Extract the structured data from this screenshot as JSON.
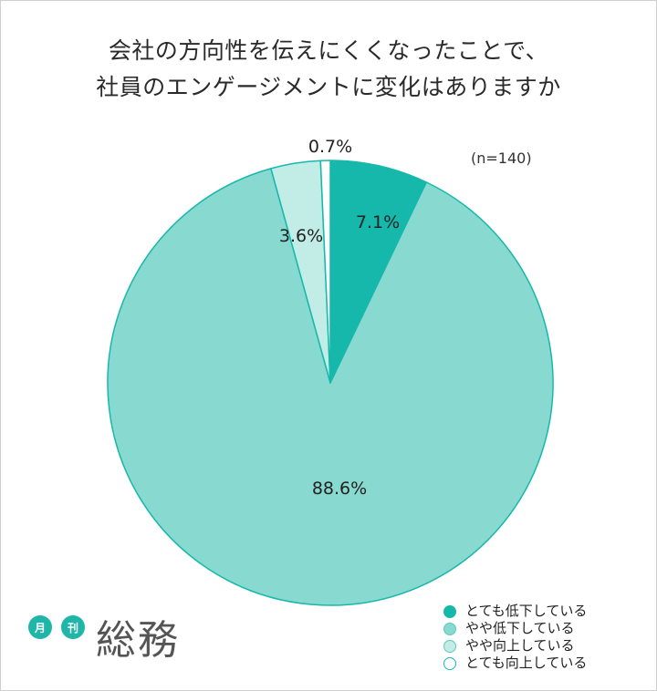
{
  "chart_data": {
    "type": "pie",
    "title_lines": [
      "会社の方向性を伝えにくくなったことで、",
      "社員のエンゲージメントに変化はありますか"
    ],
    "note": "(n=140)",
    "categories": [
      "とても低下している",
      "やや低下している",
      "やや向上している",
      "とても向上している"
    ],
    "values": [
      7.1,
      88.6,
      3.6,
      0.7
    ],
    "labels": [
      "7.1%",
      "88.6%",
      "3.6%",
      "0.7%"
    ],
    "colors": [
      "#17b8ac",
      "#88d9cf",
      "#c2ece6",
      "#ffffff"
    ],
    "legend_position": "bottom-right"
  },
  "logo": {
    "badge_1": "月",
    "badge_2": "刊",
    "text": "総務"
  }
}
